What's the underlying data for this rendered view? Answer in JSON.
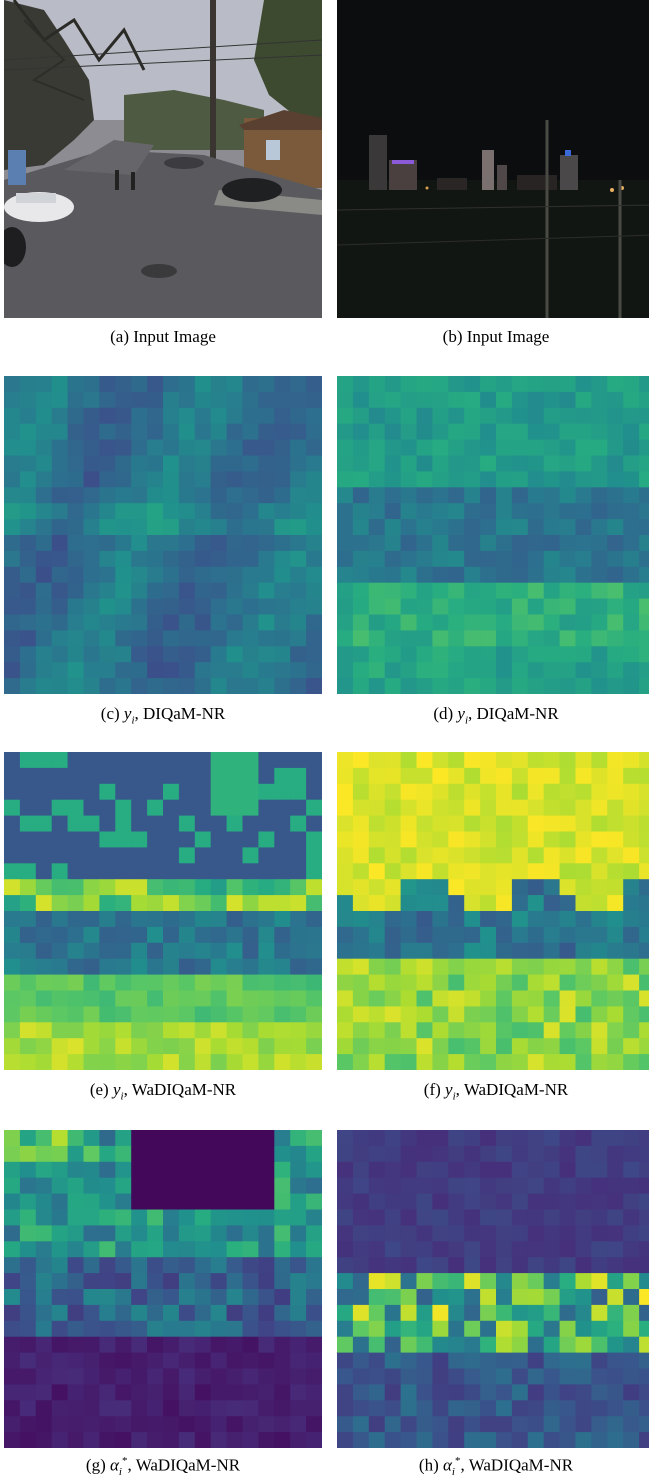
{
  "figure": {
    "panels": [
      {
        "id": "a",
        "caption_letter": "(a)",
        "caption_text": "Input Image",
        "kind": "photo-street"
      },
      {
        "id": "b",
        "caption_letter": "(b)",
        "caption_text": "Input Image",
        "kind": "photo-night"
      },
      {
        "id": "c",
        "caption_letter": "(c)",
        "symbol": "y",
        "sub": "i",
        "sup": "",
        "caption_text": "DIQaM-NR",
        "kind": "heatmap",
        "pattern": "diqam-street"
      },
      {
        "id": "d",
        "caption_letter": "(d)",
        "symbol": "y",
        "sub": "i",
        "sup": "",
        "caption_text": "DIQaM-NR",
        "kind": "heatmap",
        "pattern": "diqam-night"
      },
      {
        "id": "e",
        "caption_letter": "(e)",
        "symbol": "y",
        "sub": "i",
        "sup": "",
        "caption_text": "WaDIQaM-NR",
        "kind": "heatmap",
        "pattern": "wadiqam-street"
      },
      {
        "id": "f",
        "caption_letter": "(f)",
        "symbol": "y",
        "sub": "i",
        "sup": "",
        "caption_text": "WaDIQaM-NR",
        "kind": "heatmap",
        "pattern": "wadiqam-night"
      },
      {
        "id": "g",
        "caption_letter": "(g)",
        "symbol": "α",
        "sub": "i",
        "sup": "*",
        "caption_text": "WaDIQaM-NR",
        "kind": "heatmap",
        "pattern": "alpha-street"
      },
      {
        "id": "h",
        "caption_letter": "(h)",
        "symbol": "α",
        "sub": "i",
        "sup": "*",
        "caption_text": "WaDIQaM-NR",
        "kind": "heatmap",
        "pattern": "alpha-night"
      }
    ],
    "colormap": "viridis",
    "colors": {
      "viridis_low": "#440154",
      "viridis_mid": "#21918c",
      "viridis_high": "#fde725"
    }
  }
}
